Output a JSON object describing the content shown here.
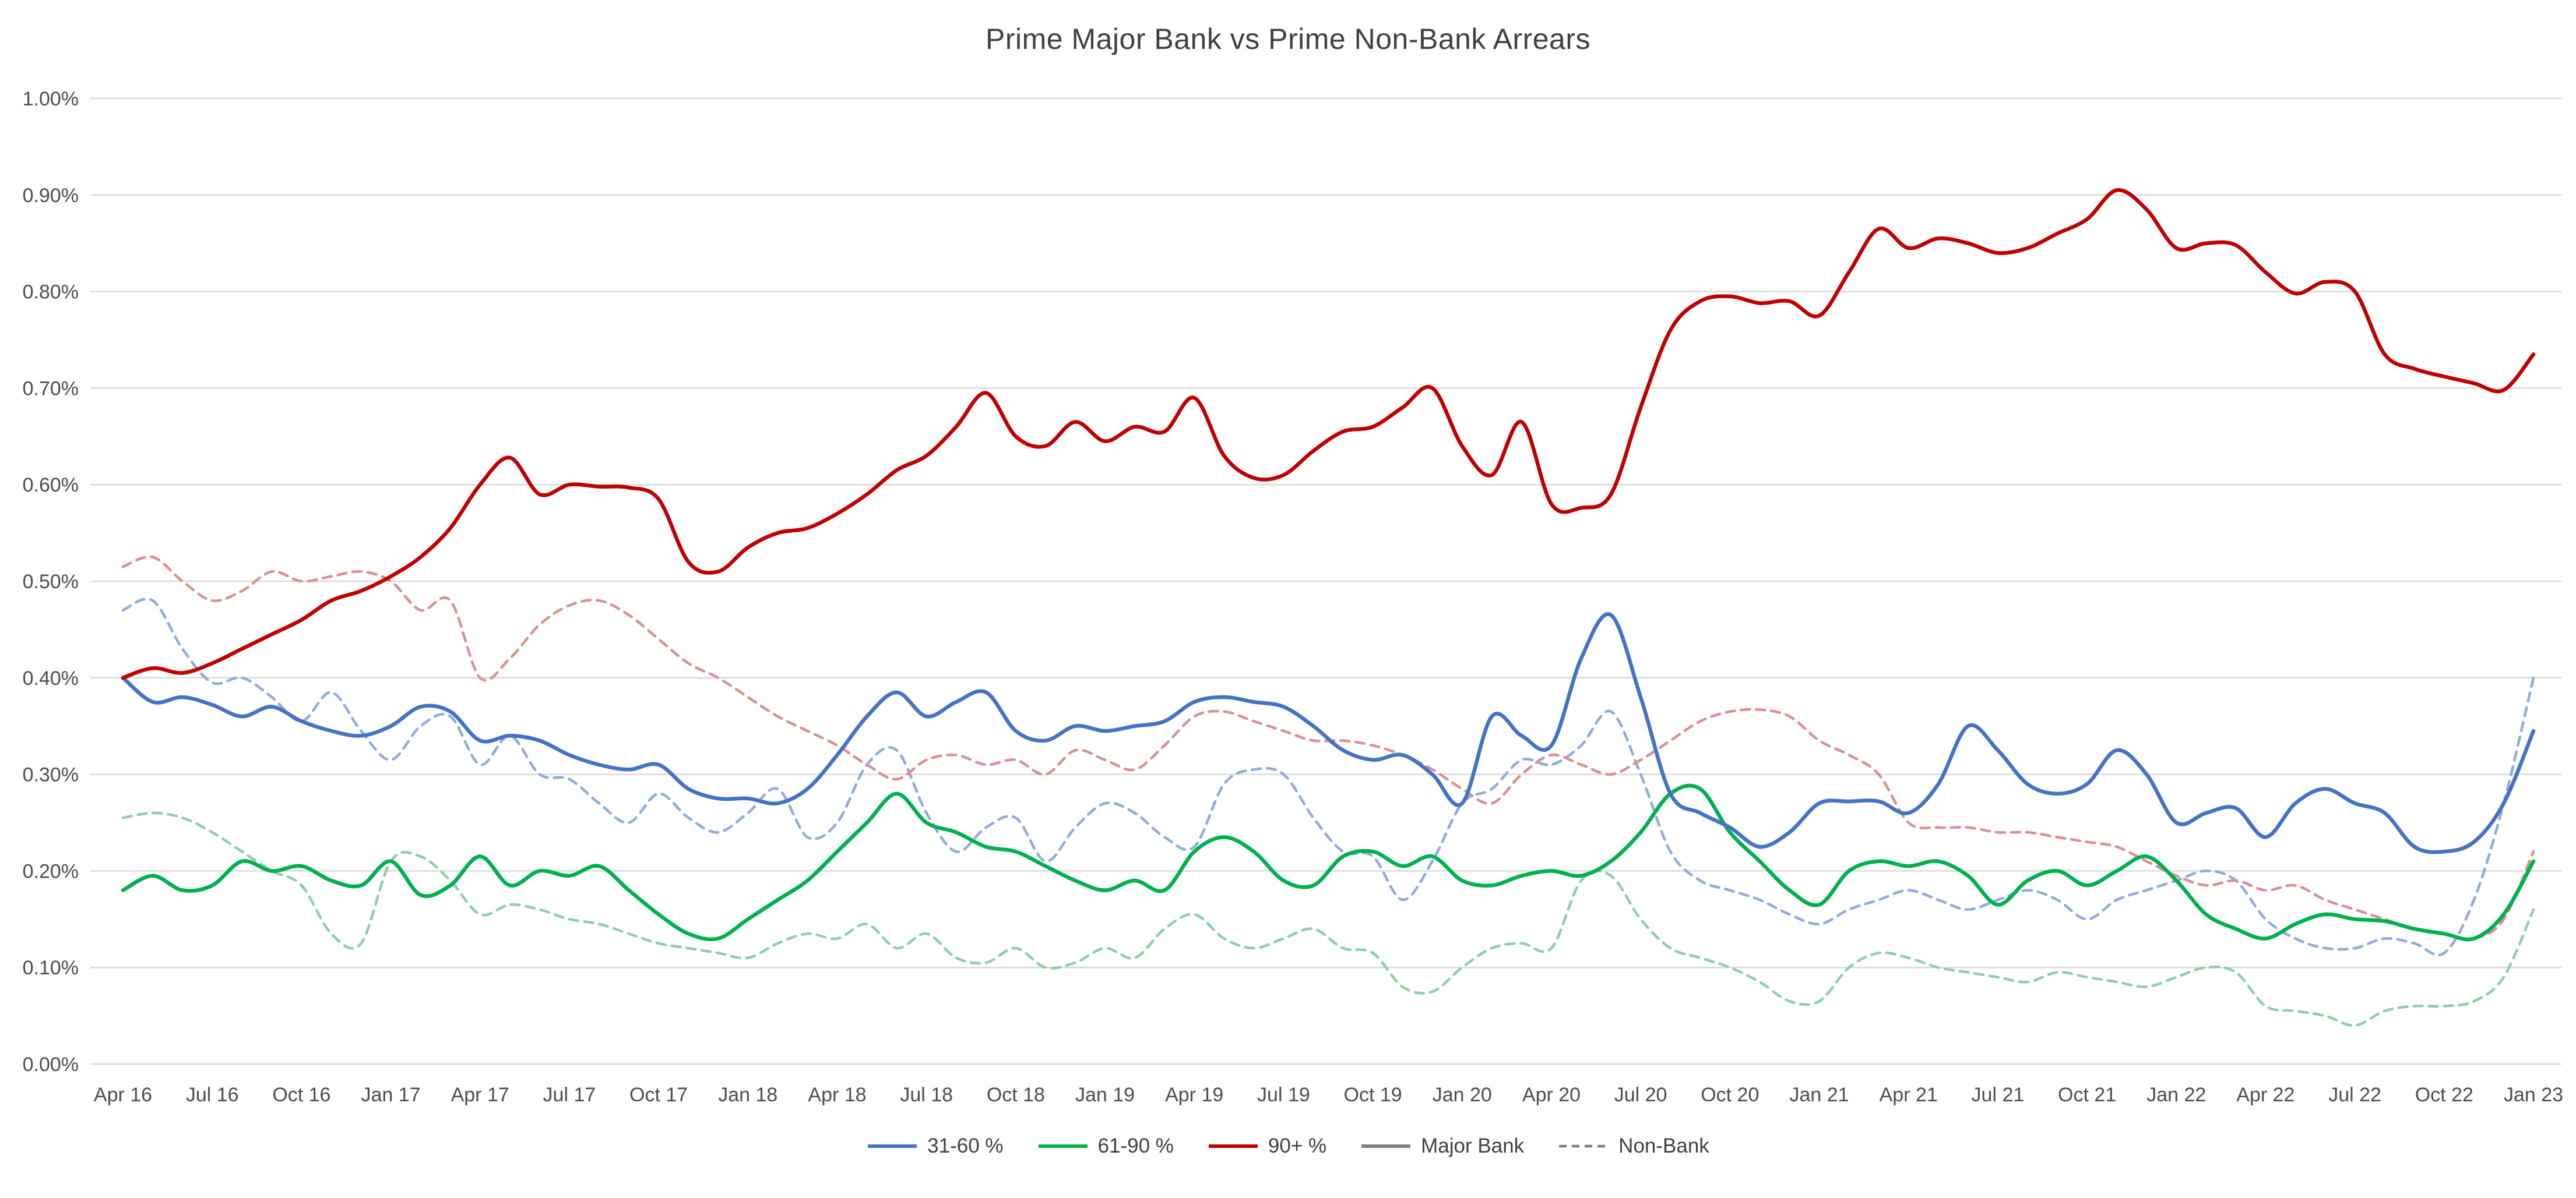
{
  "chart_data": {
    "type": "line",
    "title": "Prime Major Bank vs Prime Non-Bank Arrears",
    "xlabel": "",
    "ylabel": "",
    "ylim": [
      0,
      1.0
    ],
    "y_ticks": [
      0,
      0.1,
      0.2,
      0.3,
      0.4,
      0.5,
      0.6,
      0.7,
      0.8,
      0.9,
      1.0
    ],
    "y_tick_format": "percent-2dp",
    "grid": "horizontal",
    "legend_position": "bottom",
    "points_per_series": 82,
    "x_tick_interval": 3,
    "x_tick_labels": [
      "Apr 16",
      "Jul 16",
      "Oct 16",
      "Jan 17",
      "Apr 17",
      "Jul 17",
      "Oct 17",
      "Jan 18",
      "Apr 18",
      "Jul 18",
      "Oct 18",
      "Jan 19",
      "Apr 19",
      "Jul 19",
      "Oct 19",
      "Jan 20",
      "Apr 20",
      "Jul 20",
      "Oct 20",
      "Jan 21",
      "Apr 21",
      "Jul 21",
      "Oct 21",
      "Jan 22",
      "Apr 22",
      "Jul 22",
      "Oct 22",
      "Jan 23"
    ],
    "legend": [
      {
        "label": "31-60 %",
        "color": "#4472C4",
        "dash": false
      },
      {
        "label": "61-90 %",
        "color": "#00B050",
        "dash": false
      },
      {
        "label": "90+ %",
        "color": "#C00000",
        "dash": false
      },
      {
        "label": "Major Bank",
        "color": "#7F7F7F",
        "dash": false
      },
      {
        "label": "Non-Bank",
        "color": "#7F7F7F",
        "dash": true
      }
    ],
    "series": [
      {
        "name": "31-60 % Non-Bank",
        "bucket": "31-60 %",
        "lender": "Non-Bank",
        "color": "#8FAADC",
        "dash": true,
        "values": [
          0.47,
          0.48,
          0.43,
          0.395,
          0.4,
          0.38,
          0.355,
          0.385,
          0.345,
          0.315,
          0.35,
          0.36,
          0.31,
          0.34,
          0.3,
          0.295,
          0.27,
          0.25,
          0.28,
          0.255,
          0.24,
          0.26,
          0.285,
          0.235,
          0.25,
          0.31,
          0.325,
          0.26,
          0.22,
          0.245,
          0.255,
          0.21,
          0.245,
          0.27,
          0.26,
          0.235,
          0.225,
          0.29,
          0.305,
          0.3,
          0.255,
          0.22,
          0.215,
          0.17,
          0.21,
          0.27,
          0.285,
          0.315,
          0.31,
          0.33,
          0.365,
          0.3,
          0.22,
          0.19,
          0.18,
          0.17,
          0.155,
          0.145,
          0.16,
          0.17,
          0.18,
          0.17,
          0.16,
          0.17,
          0.18,
          0.17,
          0.15,
          0.17,
          0.18,
          0.19,
          0.2,
          0.19,
          0.15,
          0.13,
          0.12,
          0.12,
          0.13,
          0.125,
          0.115,
          0.17,
          0.27,
          0.4
        ]
      },
      {
        "name": "61-90 % Non-Bank",
        "bucket": "61-90 %",
        "lender": "Non-Bank",
        "color": "#8CCFA5",
        "dash": true,
        "values": [
          0.255,
          0.26,
          0.255,
          0.24,
          0.22,
          0.2,
          0.185,
          0.135,
          0.125,
          0.21,
          0.215,
          0.19,
          0.155,
          0.165,
          0.16,
          0.15,
          0.145,
          0.135,
          0.125,
          0.12,
          0.115,
          0.11,
          0.125,
          0.135,
          0.13,
          0.145,
          0.12,
          0.135,
          0.11,
          0.105,
          0.12,
          0.1,
          0.105,
          0.12,
          0.11,
          0.14,
          0.155,
          0.13,
          0.12,
          0.13,
          0.14,
          0.12,
          0.115,
          0.08,
          0.075,
          0.1,
          0.12,
          0.125,
          0.12,
          0.19,
          0.195,
          0.15,
          0.12,
          0.11,
          0.1,
          0.085,
          0.065,
          0.065,
          0.1,
          0.115,
          0.11,
          0.1,
          0.095,
          0.09,
          0.085,
          0.095,
          0.09,
          0.085,
          0.08,
          0.09,
          0.1,
          0.095,
          0.06,
          0.055,
          0.05,
          0.04,
          0.055,
          0.06,
          0.06,
          0.065,
          0.09,
          0.16
        ]
      },
      {
        "name": "90+ % Non-Bank",
        "bucket": "90+ %",
        "lender": "Non-Bank",
        "color": "#DC8E8E",
        "dash": true,
        "values": [
          0.515,
          0.525,
          0.5,
          0.48,
          0.49,
          0.51,
          0.5,
          0.505,
          0.51,
          0.5,
          0.47,
          0.48,
          0.4,
          0.42,
          0.455,
          0.475,
          0.48,
          0.465,
          0.44,
          0.415,
          0.4,
          0.38,
          0.36,
          0.345,
          0.33,
          0.31,
          0.295,
          0.315,
          0.32,
          0.31,
          0.315,
          0.3,
          0.325,
          0.315,
          0.305,
          0.33,
          0.36,
          0.365,
          0.355,
          0.345,
          0.335,
          0.335,
          0.33,
          0.32,
          0.305,
          0.285,
          0.27,
          0.3,
          0.32,
          0.31,
          0.3,
          0.315,
          0.335,
          0.355,
          0.365,
          0.367,
          0.36,
          0.335,
          0.32,
          0.3,
          0.25,
          0.245,
          0.245,
          0.24,
          0.24,
          0.235,
          0.23,
          0.225,
          0.21,
          0.195,
          0.185,
          0.19,
          0.18,
          0.185,
          0.17,
          0.16,
          0.15,
          0.14,
          0.135,
          0.13,
          0.15,
          0.22
        ]
      },
      {
        "name": "61-90 % Major Bank",
        "bucket": "61-90 %",
        "lender": "Major Bank",
        "color": "#00B050",
        "dash": false,
        "values": [
          0.18,
          0.195,
          0.18,
          0.185,
          0.21,
          0.2,
          0.205,
          0.19,
          0.185,
          0.21,
          0.175,
          0.185,
          0.215,
          0.185,
          0.2,
          0.195,
          0.205,
          0.18,
          0.155,
          0.135,
          0.13,
          0.15,
          0.17,
          0.19,
          0.22,
          0.25,
          0.28,
          0.25,
          0.24,
          0.225,
          0.22,
          0.205,
          0.19,
          0.18,
          0.19,
          0.18,
          0.22,
          0.235,
          0.22,
          0.19,
          0.185,
          0.215,
          0.22,
          0.205,
          0.215,
          0.19,
          0.185,
          0.195,
          0.2,
          0.195,
          0.21,
          0.24,
          0.28,
          0.285,
          0.24,
          0.21,
          0.18,
          0.165,
          0.2,
          0.21,
          0.205,
          0.21,
          0.195,
          0.165,
          0.19,
          0.2,
          0.185,
          0.2,
          0.215,
          0.19,
          0.155,
          0.14,
          0.13,
          0.145,
          0.155,
          0.15,
          0.148,
          0.14,
          0.135,
          0.13,
          0.155,
          0.21
        ]
      },
      {
        "name": "31-60 % Major Bank",
        "bucket": "31-60 %",
        "lender": "Major Bank",
        "color": "#4472C4",
        "dash": false,
        "values": [
          0.4,
          0.375,
          0.38,
          0.372,
          0.36,
          0.37,
          0.355,
          0.345,
          0.34,
          0.35,
          0.37,
          0.365,
          0.335,
          0.34,
          0.335,
          0.32,
          0.31,
          0.305,
          0.31,
          0.285,
          0.275,
          0.275,
          0.27,
          0.285,
          0.32,
          0.36,
          0.385,
          0.36,
          0.375,
          0.385,
          0.345,
          0.335,
          0.35,
          0.345,
          0.35,
          0.355,
          0.375,
          0.38,
          0.375,
          0.37,
          0.35,
          0.325,
          0.315,
          0.32,
          0.3,
          0.27,
          0.36,
          0.34,
          0.33,
          0.42,
          0.465,
          0.38,
          0.28,
          0.26,
          0.245,
          0.225,
          0.24,
          0.27,
          0.272,
          0.272,
          0.26,
          0.29,
          0.35,
          0.325,
          0.29,
          0.28,
          0.29,
          0.325,
          0.3,
          0.25,
          0.26,
          0.265,
          0.235,
          0.27,
          0.285,
          0.27,
          0.26,
          0.225,
          0.22,
          0.23,
          0.27,
          0.345
        ]
      },
      {
        "name": "90+ % Major Bank",
        "bucket": "90+ %",
        "lender": "Major Bank",
        "color": "#C00000",
        "dash": false,
        "values": [
          0.4,
          0.41,
          0.405,
          0.415,
          0.43,
          0.445,
          0.46,
          0.48,
          0.49,
          0.505,
          0.525,
          0.555,
          0.6,
          0.628,
          0.59,
          0.6,
          0.598,
          0.597,
          0.585,
          0.52,
          0.51,
          0.535,
          0.55,
          0.555,
          0.57,
          0.59,
          0.615,
          0.63,
          0.66,
          0.695,
          0.65,
          0.64,
          0.665,
          0.645,
          0.66,
          0.655,
          0.69,
          0.63,
          0.607,
          0.61,
          0.635,
          0.655,
          0.66,
          0.68,
          0.7,
          0.64,
          0.61,
          0.665,
          0.58,
          0.576,
          0.59,
          0.68,
          0.76,
          0.79,
          0.795,
          0.788,
          0.79,
          0.775,
          0.82,
          0.865,
          0.845,
          0.855,
          0.85,
          0.84,
          0.845,
          0.86,
          0.875,
          0.905,
          0.885,
          0.845,
          0.85,
          0.848,
          0.82,
          0.798,
          0.81,
          0.8,
          0.735,
          0.72,
          0.712,
          0.705,
          0.698,
          0.735
        ]
      }
    ]
  }
}
